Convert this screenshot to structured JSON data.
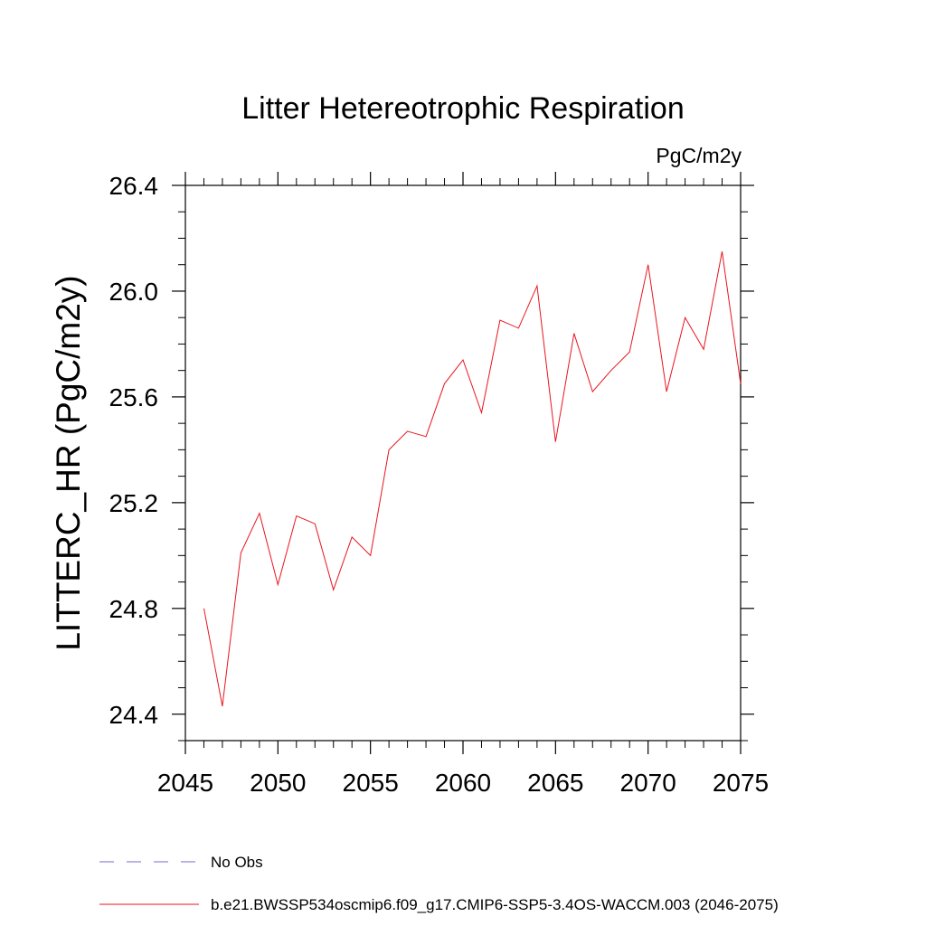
{
  "chart_data": {
    "type": "line",
    "title": "Litter Hetereotrophic Respiration",
    "units": "PgC/m2y",
    "ylabel": "LITTERC_HR  (PgC/m2y)",
    "xlabel": "",
    "xlim": [
      2045,
      2075
    ],
    "ylim": [
      24.3,
      26.4
    ],
    "xticks": [
      2045,
      2050,
      2055,
      2060,
      2065,
      2070,
      2075
    ],
    "xtick_labels": [
      "2045",
      "2050",
      "2055",
      "2060",
      "2065",
      "2070",
      "2075"
    ],
    "yticks": [
      24.4,
      24.8,
      25.2,
      25.6,
      26.0,
      26.4
    ],
    "ytick_labels": [
      "24.4",
      "24.8",
      "25.2",
      "25.6",
      "26.0",
      "26.4"
    ],
    "grid": false,
    "legend_position": "bottom-left",
    "x": [
      2046,
      2047,
      2048,
      2049,
      2050,
      2051,
      2052,
      2053,
      2054,
      2055,
      2056,
      2057,
      2058,
      2059,
      2060,
      2061,
      2062,
      2063,
      2064,
      2065,
      2066,
      2067,
      2068,
      2069,
      2070,
      2071,
      2072,
      2073,
      2074,
      2075
    ],
    "series": [
      {
        "name": "b.e21.BWSSP534oscmip6.f09_g17.CMIP6-SSP5-3.4OS-WACCM.003 (2046-2075)",
        "color": "#e8141e",
        "values": [
          24.8,
          24.43,
          25.01,
          25.16,
          24.89,
          25.15,
          25.12,
          24.87,
          25.07,
          25.0,
          25.4,
          25.47,
          25.45,
          25.65,
          25.74,
          25.54,
          25.89,
          25.86,
          26.02,
          25.43,
          25.84,
          25.62,
          25.7,
          25.77,
          26.1,
          25.62,
          25.9,
          25.78,
          26.15,
          25.65
        ]
      }
    ],
    "legend": [
      {
        "label": "No Obs",
        "style": "dashed",
        "color": "#7b68c8"
      },
      {
        "label": "b.e21.BWSSP534oscmip6.f09_g17.CMIP6-SSP5-3.4OS-WACCM.003 (2046-2075)",
        "style": "solid",
        "color": "#e8141e"
      }
    ]
  }
}
